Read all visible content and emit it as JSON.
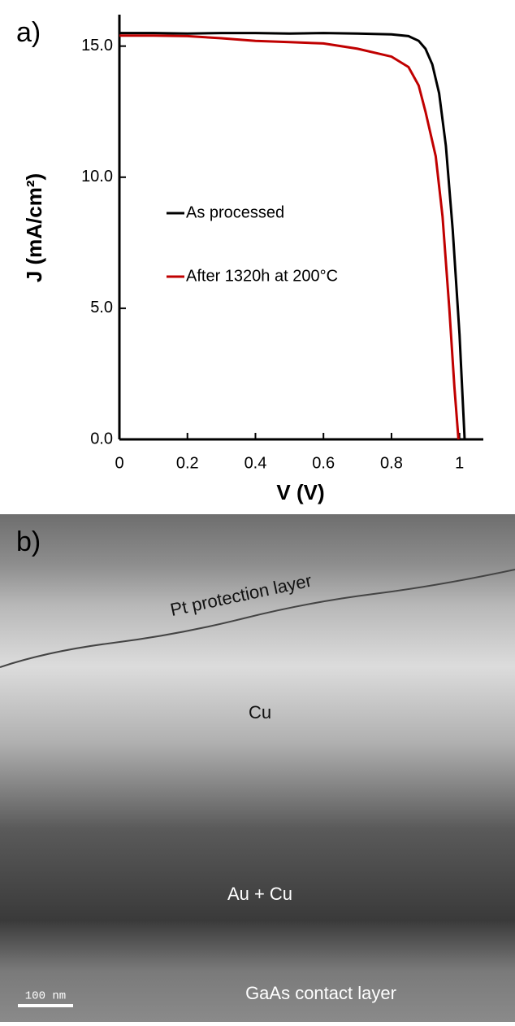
{
  "chart_data": {
    "type": "line",
    "panel_label": "a)",
    "x_label": "V (V)",
    "y_label": "J (mA/cm²)",
    "xlim": [
      0,
      1.07
    ],
    "ylim": [
      0,
      16.2
    ],
    "xticks": [
      0,
      0.2,
      0.4,
      0.6,
      0.8,
      1
    ],
    "yticks": [
      {
        "value": 0,
        "label": "0.0"
      },
      {
        "value": 5,
        "label": "5.0"
      },
      {
        "value": 10,
        "label": "10.0"
      },
      {
        "value": 15,
        "label": "15.0"
      }
    ],
    "legend": "center",
    "series": [
      {
        "name": "As processed",
        "color": "#000000",
        "x": [
          0,
          0.1,
          0.2,
          0.3,
          0.4,
          0.5,
          0.6,
          0.7,
          0.8,
          0.85,
          0.88,
          0.9,
          0.92,
          0.94,
          0.96,
          0.98,
          1.0,
          1.015
        ],
        "values": [
          15.5,
          15.5,
          15.48,
          15.5,
          15.5,
          15.48,
          15.5,
          15.48,
          15.45,
          15.38,
          15.2,
          14.9,
          14.3,
          13.2,
          11.2,
          8.0,
          4.0,
          0
        ]
      },
      {
        "name": "After 1320h at 200°C",
        "color": "#c00000",
        "x": [
          0,
          0.1,
          0.2,
          0.3,
          0.4,
          0.5,
          0.6,
          0.7,
          0.8,
          0.85,
          0.88,
          0.9,
          0.93,
          0.95,
          0.97,
          0.985,
          0.997
        ],
        "values": [
          15.4,
          15.4,
          15.38,
          15.3,
          15.2,
          15.15,
          15.1,
          14.9,
          14.6,
          14.2,
          13.5,
          12.5,
          10.8,
          8.5,
          5.0,
          2.0,
          0
        ]
      }
    ]
  },
  "image_panel": {
    "panel_label": "b)",
    "layers": [
      "Pt protection layer",
      "Cu",
      "Au + Cu",
      "GaAs contact layer"
    ],
    "scale_bar": "100 nm"
  }
}
